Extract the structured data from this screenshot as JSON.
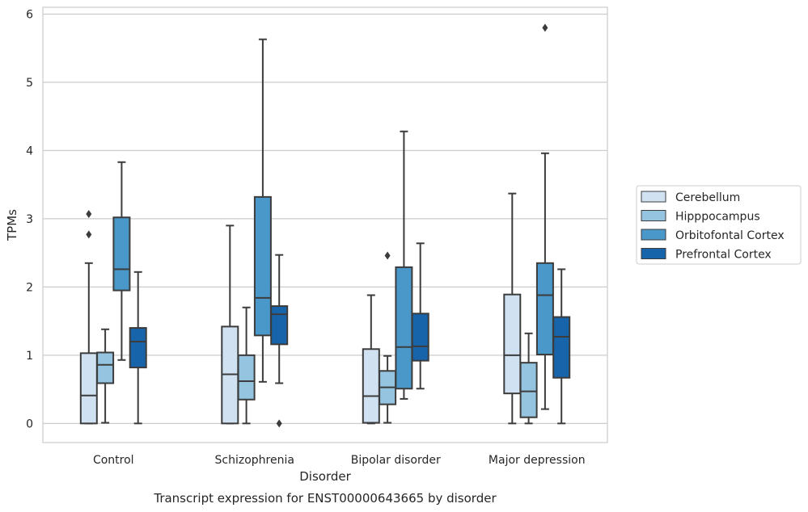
{
  "caption": "Transcript expression for ENST00000643665 by disorder",
  "chart_data": {
    "type": "box",
    "xlabel": "Disorder",
    "ylabel": "TPMs",
    "ylim": [
      -0.28,
      6.1
    ],
    "yticks": [
      0,
      1,
      2,
      3,
      4,
      5,
      6
    ],
    "grid": "horizontal",
    "legend_position": "right",
    "categories": [
      "Control",
      "Schizophrenia",
      "Bipolar disorder",
      "Major depression"
    ],
    "series": [
      {
        "name": "Cerebellum",
        "color": "#d0e1f2",
        "boxes": [
          {
            "whislo": 0.0,
            "q1": 0.0,
            "med": 0.41,
            "q3": 1.03,
            "whishi": 2.35,
            "fliers": [
              2.77,
              3.07
            ]
          },
          {
            "whislo": 0.0,
            "q1": 0.0,
            "med": 0.72,
            "q3": 1.42,
            "whishi": 2.9,
            "fliers": []
          },
          {
            "whislo": 0.0,
            "q1": 0.01,
            "med": 0.4,
            "q3": 1.09,
            "whishi": 1.88,
            "fliers": []
          },
          {
            "whislo": 0.0,
            "q1": 0.44,
            "med": 1.0,
            "q3": 1.89,
            "whishi": 3.37,
            "fliers": []
          }
        ]
      },
      {
        "name": "Hipppocampus",
        "color": "#94c4df",
        "boxes": [
          {
            "whislo": 0.01,
            "q1": 0.59,
            "med": 0.86,
            "q3": 1.04,
            "whishi": 1.38,
            "fliers": []
          },
          {
            "whislo": 0.0,
            "q1": 0.35,
            "med": 0.62,
            "q3": 1.0,
            "whishi": 1.7,
            "fliers": []
          },
          {
            "whislo": 0.01,
            "q1": 0.28,
            "med": 0.53,
            "q3": 0.77,
            "whishi": 0.99,
            "fliers": [
              2.46
            ]
          },
          {
            "whislo": 0.0,
            "q1": 0.09,
            "med": 0.47,
            "q3": 0.89,
            "whishi": 1.32,
            "fliers": []
          }
        ]
      },
      {
        "name": "Orbitofontal Cortex",
        "color": "#4a98c9",
        "boxes": [
          {
            "whislo": 0.93,
            "q1": 1.95,
            "med": 2.26,
            "q3": 3.02,
            "whishi": 3.83,
            "fliers": []
          },
          {
            "whislo": 0.61,
            "q1": 1.29,
            "med": 1.84,
            "q3": 3.32,
            "whishi": 5.63,
            "fliers": []
          },
          {
            "whislo": 0.36,
            "q1": 0.51,
            "med": 1.12,
            "q3": 2.29,
            "whishi": 4.28,
            "fliers": []
          },
          {
            "whislo": 0.21,
            "q1": 1.01,
            "med": 1.88,
            "q3": 2.35,
            "whishi": 3.96,
            "fliers": [
              5.8
            ]
          }
        ]
      },
      {
        "name": "Prefrontal Cortex",
        "color": "#1764ab",
        "boxes": [
          {
            "whislo": 0.0,
            "q1": 0.82,
            "med": 1.2,
            "q3": 1.4,
            "whishi": 2.22,
            "fliers": []
          },
          {
            "whislo": 0.59,
            "q1": 1.16,
            "med": 1.6,
            "q3": 1.72,
            "whishi": 2.47,
            "fliers": [
              0.0
            ]
          },
          {
            "whislo": 0.51,
            "q1": 0.92,
            "med": 1.13,
            "q3": 1.61,
            "whishi": 2.64,
            "fliers": []
          },
          {
            "whislo": 0.0,
            "q1": 0.67,
            "med": 1.27,
            "q3": 1.56,
            "whishi": 2.26,
            "fliers": []
          }
        ]
      }
    ]
  }
}
